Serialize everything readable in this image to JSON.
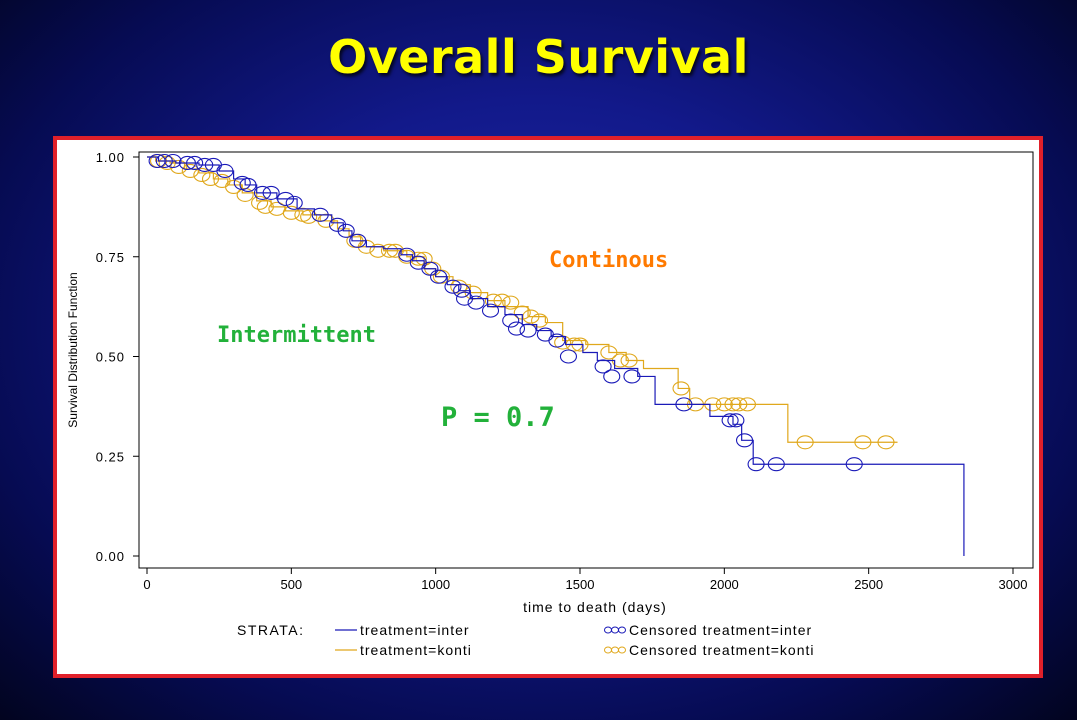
{
  "title": "Overall Survival",
  "colors": {
    "title": "#ffff00",
    "frame_border": "#e0202a",
    "inter": "#1a1ab8",
    "konti": "#e0a81c",
    "label_continous": "#ff7a00",
    "label_intermittent": "#22b13a",
    "p_value": "#22b13a"
  },
  "chart_data": {
    "type": "line",
    "subtype": "kaplan-meier step plot",
    "xlabel": "time to death (days)",
    "ylabel": "Survival Distribution Function",
    "xlim": [
      0,
      3000
    ],
    "ylim": [
      0,
      1
    ],
    "xticks": [
      "0",
      "500",
      "1000",
      "1500",
      "2000",
      "2500",
      "3000"
    ],
    "yticks": [
      "0.00",
      "0.25",
      "0.50",
      "0.75",
      "1.00"
    ],
    "grid": false,
    "annotations": {
      "continous": "Continous",
      "intermittent": "Intermittent",
      "p_value": "P = 0.7"
    },
    "legend": {
      "position": "bottom",
      "title": "STRATA:",
      "items": [
        "treatment=inter",
        "Censored treatment=inter",
        "treatment=konti",
        "Censored treatment=konti"
      ]
    },
    "series": [
      {
        "name": "treatment=inter",
        "step_x": [
          0,
          40,
          100,
          180,
          250,
          300,
          340,
          380,
          450,
          520,
          580,
          640,
          680,
          710,
          760,
          820,
          880,
          920,
          960,
          1000,
          1040,
          1080,
          1120,
          1180,
          1240,
          1300,
          1350,
          1400,
          1450,
          1510,
          1560,
          1620,
          1700,
          1760,
          1880,
          1950,
          2030,
          2060,
          2100,
          2830,
          2830
        ],
        "step_y": [
          1.0,
          0.99,
          0.985,
          0.98,
          0.965,
          0.945,
          0.93,
          0.91,
          0.895,
          0.87,
          0.855,
          0.835,
          0.815,
          0.79,
          0.775,
          0.77,
          0.755,
          0.74,
          0.72,
          0.7,
          0.68,
          0.665,
          0.645,
          0.625,
          0.605,
          0.58,
          0.565,
          0.55,
          0.53,
          0.51,
          0.49,
          0.47,
          0.45,
          0.38,
          0.38,
          0.35,
          0.33,
          0.29,
          0.23,
          0.23,
          0.0
        ],
        "censored": [
          {
            "x": 35,
            "y": 0.99
          },
          {
            "x": 60,
            "y": 0.99
          },
          {
            "x": 90,
            "y": 0.99
          },
          {
            "x": 140,
            "y": 0.985
          },
          {
            "x": 165,
            "y": 0.985
          },
          {
            "x": 200,
            "y": 0.98
          },
          {
            "x": 230,
            "y": 0.98
          },
          {
            "x": 270,
            "y": 0.965
          },
          {
            "x": 330,
            "y": 0.935
          },
          {
            "x": 350,
            "y": 0.93
          },
          {
            "x": 400,
            "y": 0.91
          },
          {
            "x": 430,
            "y": 0.91
          },
          {
            "x": 480,
            "y": 0.895
          },
          {
            "x": 510,
            "y": 0.885
          },
          {
            "x": 600,
            "y": 0.855
          },
          {
            "x": 660,
            "y": 0.83
          },
          {
            "x": 690,
            "y": 0.815
          },
          {
            "x": 730,
            "y": 0.79
          },
          {
            "x": 900,
            "y": 0.755
          },
          {
            "x": 940,
            "y": 0.735
          },
          {
            "x": 980,
            "y": 0.72
          },
          {
            "x": 1010,
            "y": 0.7
          },
          {
            "x": 1060,
            "y": 0.675
          },
          {
            "x": 1090,
            "y": 0.665
          },
          {
            "x": 1100,
            "y": 0.645
          },
          {
            "x": 1140,
            "y": 0.635
          },
          {
            "x": 1190,
            "y": 0.615
          },
          {
            "x": 1260,
            "y": 0.59
          },
          {
            "x": 1280,
            "y": 0.57
          },
          {
            "x": 1320,
            "y": 0.565
          },
          {
            "x": 1380,
            "y": 0.555
          },
          {
            "x": 1420,
            "y": 0.54
          },
          {
            "x": 1460,
            "y": 0.5
          },
          {
            "x": 1580,
            "y": 0.475
          },
          {
            "x": 1610,
            "y": 0.45
          },
          {
            "x": 1680,
            "y": 0.45
          },
          {
            "x": 1860,
            "y": 0.38
          },
          {
            "x": 2020,
            "y": 0.34
          },
          {
            "x": 2040,
            "y": 0.34
          },
          {
            "x": 2070,
            "y": 0.29
          },
          {
            "x": 2110,
            "y": 0.23
          },
          {
            "x": 2180,
            "y": 0.23
          },
          {
            "x": 2450,
            "y": 0.23
          }
        ]
      },
      {
        "name": "treatment=konti",
        "step_x": [
          0,
          30,
          80,
          130,
          180,
          230,
          280,
          330,
          380,
          430,
          480,
          540,
          600,
          660,
          700,
          740,
          820,
          900,
          960,
          1000,
          1060,
          1120,
          1180,
          1240,
          1320,
          1380,
          1440,
          1520,
          1600,
          1660,
          1720,
          1840,
          1880,
          1960,
          2220,
          2600
        ],
        "step_y": [
          1.0,
          0.99,
          0.985,
          0.97,
          0.96,
          0.945,
          0.93,
          0.91,
          0.89,
          0.875,
          0.865,
          0.855,
          0.84,
          0.82,
          0.8,
          0.775,
          0.765,
          0.75,
          0.72,
          0.7,
          0.68,
          0.66,
          0.64,
          0.625,
          0.6,
          0.585,
          0.54,
          0.53,
          0.51,
          0.49,
          0.47,
          0.42,
          0.38,
          0.38,
          0.285,
          0.285
        ],
        "censored": [
          {
            "x": 40,
            "y": 0.99
          },
          {
            "x": 70,
            "y": 0.985
          },
          {
            "x": 110,
            "y": 0.975
          },
          {
            "x": 150,
            "y": 0.965
          },
          {
            "x": 190,
            "y": 0.955
          },
          {
            "x": 220,
            "y": 0.945
          },
          {
            "x": 260,
            "y": 0.94
          },
          {
            "x": 300,
            "y": 0.925
          },
          {
            "x": 340,
            "y": 0.905
          },
          {
            "x": 390,
            "y": 0.885
          },
          {
            "x": 410,
            "y": 0.875
          },
          {
            "x": 450,
            "y": 0.87
          },
          {
            "x": 500,
            "y": 0.86
          },
          {
            "x": 540,
            "y": 0.855
          },
          {
            "x": 560,
            "y": 0.85
          },
          {
            "x": 620,
            "y": 0.84
          },
          {
            "x": 720,
            "y": 0.79
          },
          {
            "x": 760,
            "y": 0.775
          },
          {
            "x": 800,
            "y": 0.765
          },
          {
            "x": 840,
            "y": 0.765
          },
          {
            "x": 860,
            "y": 0.765
          },
          {
            "x": 900,
            "y": 0.75
          },
          {
            "x": 940,
            "y": 0.745
          },
          {
            "x": 960,
            "y": 0.745
          },
          {
            "x": 990,
            "y": 0.72
          },
          {
            "x": 1020,
            "y": 0.7
          },
          {
            "x": 1080,
            "y": 0.675
          },
          {
            "x": 1130,
            "y": 0.66
          },
          {
            "x": 1200,
            "y": 0.64
          },
          {
            "x": 1230,
            "y": 0.64
          },
          {
            "x": 1260,
            "y": 0.635
          },
          {
            "x": 1300,
            "y": 0.61
          },
          {
            "x": 1330,
            "y": 0.6
          },
          {
            "x": 1360,
            "y": 0.59
          },
          {
            "x": 1440,
            "y": 0.535
          },
          {
            "x": 1480,
            "y": 0.53
          },
          {
            "x": 1500,
            "y": 0.53
          },
          {
            "x": 1600,
            "y": 0.51
          },
          {
            "x": 1640,
            "y": 0.49
          },
          {
            "x": 1670,
            "y": 0.49
          },
          {
            "x": 1850,
            "y": 0.42
          },
          {
            "x": 1900,
            "y": 0.38
          },
          {
            "x": 1960,
            "y": 0.38
          },
          {
            "x": 2000,
            "y": 0.38
          },
          {
            "x": 2030,
            "y": 0.38
          },
          {
            "x": 2050,
            "y": 0.38
          },
          {
            "x": 2080,
            "y": 0.38
          },
          {
            "x": 2280,
            "y": 0.285
          },
          {
            "x": 2480,
            "y": 0.285
          },
          {
            "x": 2560,
            "y": 0.285
          }
        ]
      }
    ]
  }
}
